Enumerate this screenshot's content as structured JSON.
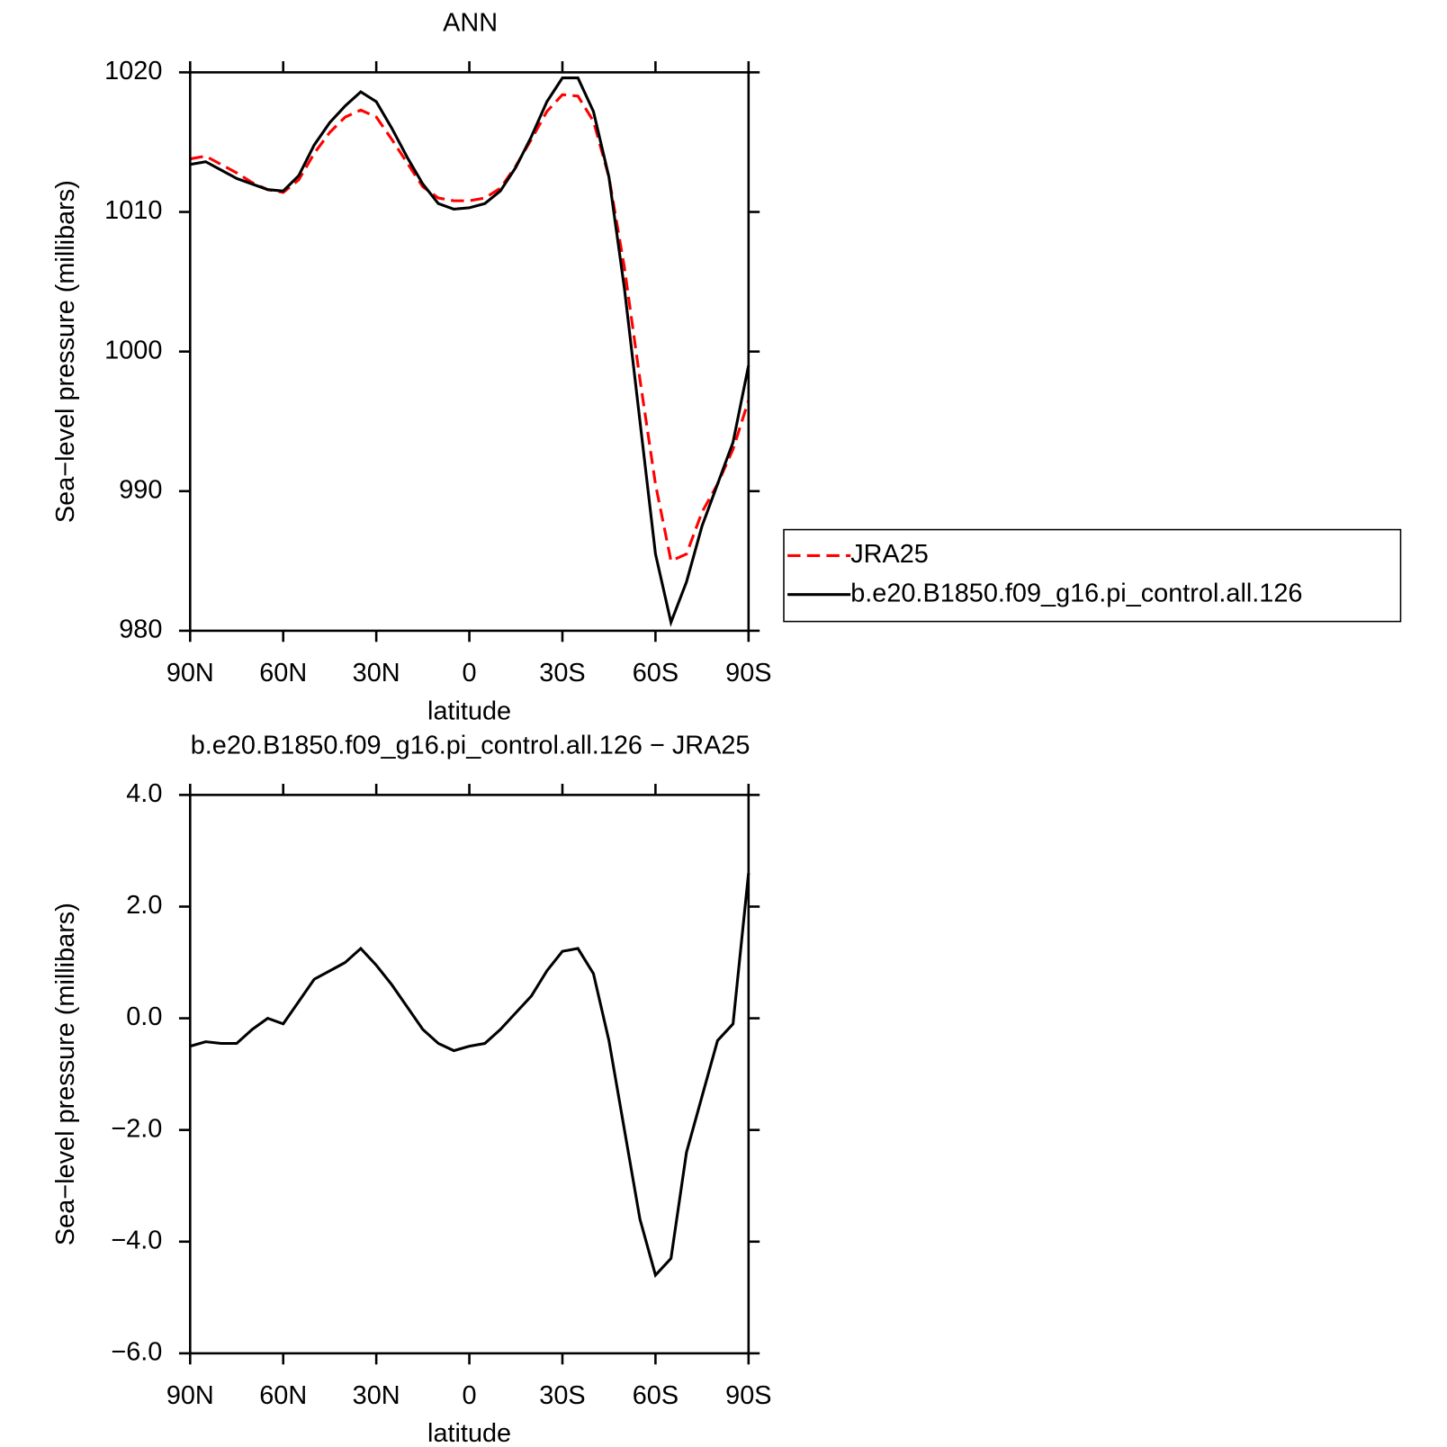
{
  "chart_data": [
    {
      "type": "line",
      "title": "ANN",
      "xlabel": "latitude",
      "ylabel": "Sea−level pressure (millibars)",
      "x": [
        90,
        85,
        80,
        75,
        70,
        65,
        60,
        55,
        50,
        45,
        40,
        35,
        30,
        25,
        20,
        15,
        10,
        5,
        0,
        -5,
        -10,
        -15,
        -20,
        -25,
        -30,
        -35,
        -40,
        -45,
        -50,
        -55,
        -60,
        -65,
        -70,
        -75,
        -80,
        -85,
        -90
      ],
      "series": [
        {
          "name": "JRA25",
          "color": "#ff0000",
          "dashed": true,
          "values": [
            1013.8,
            1014.0,
            1013.4,
            1012.8,
            1012.1,
            1011.6,
            1011.4,
            1012.3,
            1014.2,
            1015.7,
            1016.8,
            1017.3,
            1016.8,
            1015.2,
            1013.5,
            1011.8,
            1011.0,
            1010.8,
            1010.8,
            1011.0,
            1011.7,
            1013.3,
            1015.2,
            1017.2,
            1018.4,
            1018.3,
            1016.5,
            1012.5,
            1006,
            998,
            990.5,
            985,
            985.5,
            988.5,
            990.5,
            993.0,
            996.5
          ]
        },
        {
          "name": "b.e20.B1850.f09_g16.pi_control.all.126",
          "color": "#000000",
          "dashed": false,
          "values": [
            1013.4,
            1013.6,
            1013.0,
            1012.4,
            1012.0,
            1011.6,
            1011.5,
            1012.6,
            1014.8,
            1016.4,
            1017.6,
            1018.6,
            1017.9,
            1016.0,
            1013.9,
            1012.0,
            1010.6,
            1010.2,
            1010.3,
            1010.6,
            1011.5,
            1013.2,
            1015.4,
            1017.9,
            1019.6,
            1019.6,
            1017.2,
            1012.5,
            1004.5,
            995,
            985.5,
            980.6,
            983.5,
            987.5,
            990.5,
            993.5,
            999
          ]
        }
      ],
      "xlim": [
        90,
        -90
      ],
      "xticks": [
        {
          "value": 90,
          "label": "90N"
        },
        {
          "value": 60,
          "label": "60N"
        },
        {
          "value": 30,
          "label": "30N"
        },
        0,
        {
          "value": -30,
          "label": "30S"
        },
        {
          "value": -60,
          "label": "60S"
        },
        {
          "value": -90,
          "label": "90S"
        }
      ],
      "ylim": [
        980,
        1020
      ],
      "yticks": [
        980,
        990,
        1000,
        1010,
        1020
      ],
      "legend": "outside right"
    },
    {
      "type": "line",
      "title": "b.e20.B1850.f09_g16.pi_control.all.126 − JRA25",
      "xlabel": "latitude",
      "ylabel": "Sea−level pressure (millibars)",
      "x": [
        90,
        85,
        80,
        75,
        70,
        65,
        60,
        55,
        50,
        45,
        40,
        35,
        30,
        25,
        20,
        15,
        10,
        5,
        0,
        -5,
        -10,
        -15,
        -20,
        -25,
        -30,
        -35,
        -40,
        -45,
        -50,
        -55,
        -60,
        -65,
        -70,
        -75,
        -80,
        -85,
        -90
      ],
      "series": [
        {
          "color": "#000000",
          "dashed": false,
          "values": [
            -0.5,
            -0.42,
            -0.45,
            -0.45,
            -0.2,
            0.0,
            -0.1,
            0.3,
            0.7,
            0.85,
            1.0,
            1.25,
            0.95,
            0.6,
            0.2,
            -0.2,
            -0.45,
            -0.58,
            -0.5,
            -0.45,
            -0.2,
            0.1,
            0.4,
            0.85,
            1.2,
            1.25,
            0.8,
            -0.4,
            -2.0,
            -3.6,
            -4.6,
            -4.3,
            -2.4,
            -1.4,
            -0.4,
            -0.1,
            2.6
          ]
        }
      ],
      "xlim": [
        90,
        -90
      ],
      "xticks": [
        {
          "value": 90,
          "label": "90N"
        },
        {
          "value": 60,
          "label": "60N"
        },
        {
          "value": 30,
          "label": "30N"
        },
        0,
        {
          "value": -30,
          "label": "30S"
        },
        {
          "value": -60,
          "label": "60S"
        },
        {
          "value": -90,
          "label": "90S"
        }
      ],
      "ylim": [
        -6,
        4
      ],
      "yticks": [
        {
          "value": -6,
          "label": "−6.0"
        },
        {
          "value": -4,
          "label": "−4.0"
        },
        {
          "value": -2,
          "label": "−2.0"
        },
        {
          "value": 0,
          "label": "0.0"
        },
        {
          "value": 2,
          "label": "2.0"
        },
        {
          "value": 4,
          "label": "4.0"
        }
      ]
    }
  ]
}
